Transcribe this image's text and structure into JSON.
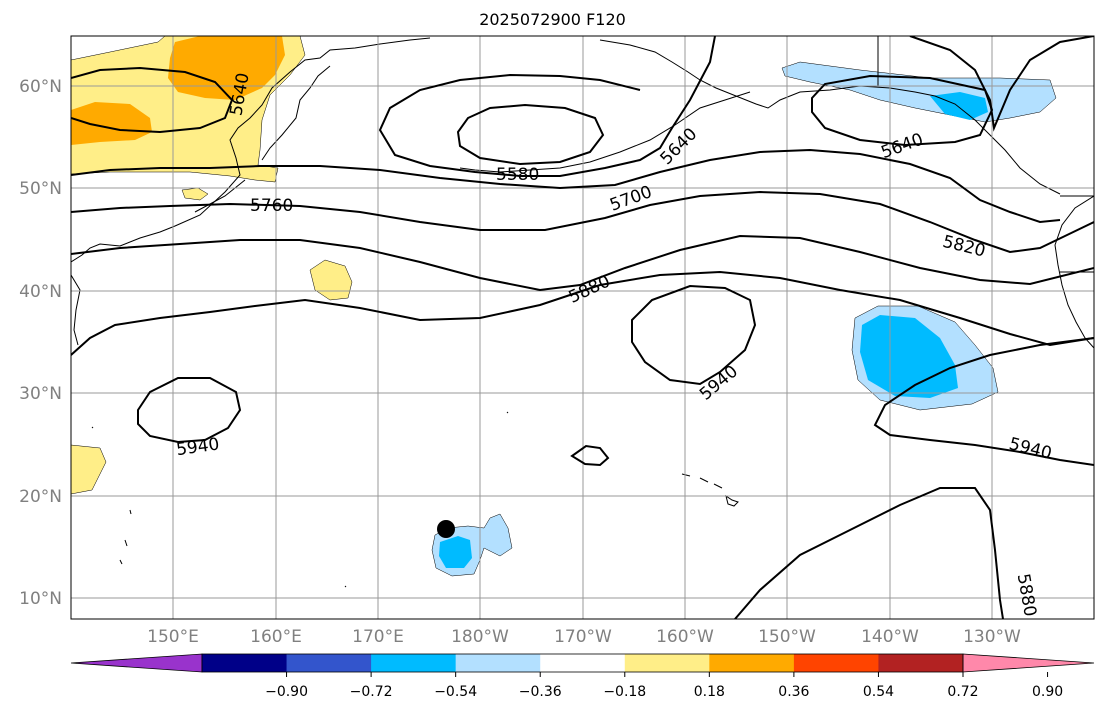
{
  "title": "2025072900 F120",
  "map": {
    "lat_labels": [
      "60°N",
      "50°N",
      "40°N",
      "30°N",
      "20°N",
      "10°N"
    ],
    "lon_labels": [
      "150°E",
      "160°E",
      "170°E",
      "180°W",
      "170°W",
      "160°W",
      "150°W",
      "140°W",
      "130°W"
    ],
    "contour_labels": [
      "5640",
      "5640",
      "5640",
      "5580",
      "5700",
      "5760",
      "5820",
      "5880",
      "5940",
      "5940",
      "5940",
      "5880"
    ],
    "marker": "storm-center-dot"
  },
  "colorbar": {
    "colors": [
      "#9933cc",
      "#000088",
      "#3355cc",
      "#00bbff",
      "#b3e0ff",
      "#ffffff",
      "#ffee88",
      "#ffaa00",
      "#ff4400",
      "#b22222",
      "#ff88aa"
    ],
    "tick_labels": [
      "−0.90",
      "−0.72",
      "−0.54",
      "−0.36",
      "−0.18",
      "0.18",
      "0.36",
      "0.54",
      "0.72",
      "0.90"
    ]
  }
}
